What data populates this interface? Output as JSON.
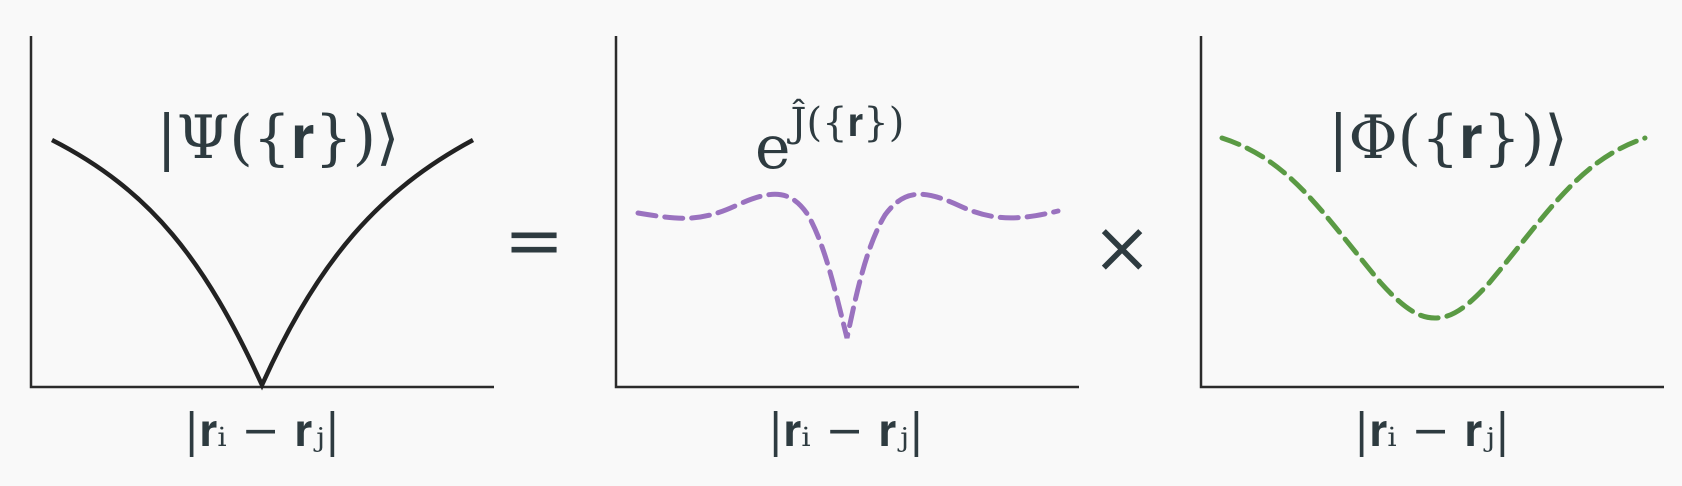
{
  "panels": [
    {
      "id": "psi",
      "title": "|Ψ({𝐫})⟩",
      "xlabel": "|𝐫ᵢ − 𝐫ⱼ|",
      "curve": {
        "style": "solid",
        "color": "#222222",
        "shape": "cusp-v"
      }
    },
    {
      "id": "jastrow",
      "title_base": "e",
      "title_exponent": "Ĵ({𝐫})",
      "xlabel": "|𝐫ᵢ − 𝐫ⱼ|",
      "curve": {
        "style": "dashed",
        "color": "#9a72bf",
        "shape": "sharp-dip-with-ripples"
      }
    },
    {
      "id": "phi",
      "title": "|Φ({𝐫})⟩",
      "xlabel": "|𝐫ᵢ − 𝐫ⱼ|",
      "curve": {
        "style": "dashed",
        "color": "#5a9a44",
        "shape": "smooth-well"
      }
    }
  ],
  "operators": {
    "equals": "=",
    "times": "×"
  },
  "colors": {
    "axis": "#2b2b2b",
    "text": "#2e3b40",
    "background": "#f9f9f9"
  }
}
